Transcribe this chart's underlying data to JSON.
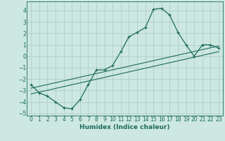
{
  "xlabel": "Humidex (Indice chaleur)",
  "bg_color": "#cce8e0",
  "grid_color": "#b0cfc8",
  "line_color": "#1e6b5e",
  "xlim": [
    -0.5,
    23.5
  ],
  "ylim": [
    -5.2,
    4.8
  ],
  "xticks": [
    0,
    1,
    2,
    3,
    4,
    5,
    6,
    7,
    8,
    9,
    10,
    11,
    12,
    13,
    14,
    15,
    16,
    17,
    18,
    19,
    20,
    21,
    22,
    23
  ],
  "yticks": [
    -5,
    -4,
    -3,
    -2,
    -1,
    0,
    1,
    2,
    3,
    4
  ],
  "series1_x": [
    0,
    1,
    2,
    3,
    4,
    5,
    6,
    7,
    8,
    9,
    10,
    11,
    12,
    13,
    14,
    15,
    16,
    17,
    18,
    19,
    20,
    21,
    22,
    23
  ],
  "series1_y": [
    -2.5,
    -3.2,
    -3.5,
    -4.0,
    -4.5,
    -4.6,
    -3.8,
    -2.5,
    -1.2,
    -1.2,
    -0.8,
    0.4,
    1.7,
    2.1,
    2.5,
    4.1,
    4.2,
    3.6,
    2.1,
    1.0,
    0.0,
    1.0,
    1.0,
    0.7
  ],
  "trend1_x": [
    0,
    23
  ],
  "trend1_y": [
    -2.8,
    0.9
  ],
  "trend2_x": [
    0,
    23
  ],
  "trend2_y": [
    -3.3,
    0.4
  ]
}
